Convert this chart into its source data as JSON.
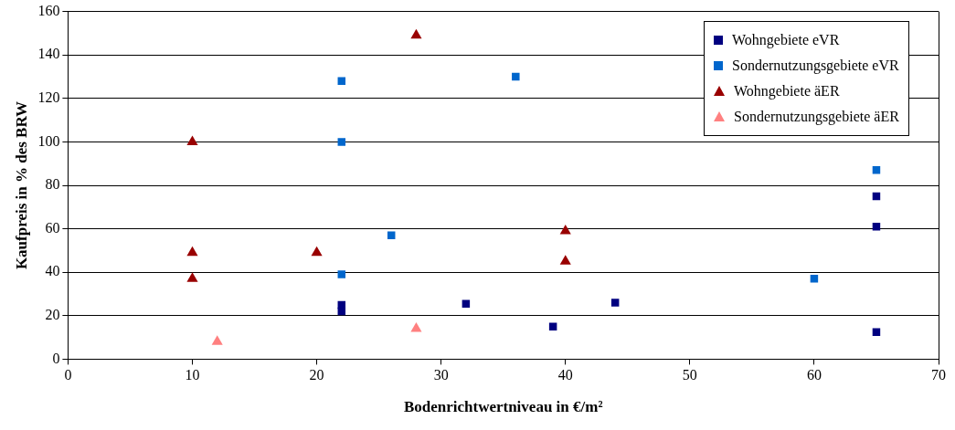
{
  "chart_data": {
    "type": "scatter",
    "xlabel": "Bodenrichtwertniveau in €/m²",
    "ylabel": "Kaufpreis in % des BRW",
    "xlim": [
      0,
      70
    ],
    "xticks": [
      0,
      10,
      20,
      30,
      40,
      50,
      60,
      70
    ],
    "ylim": [
      0,
      160
    ],
    "yticks": [
      0,
      20,
      40,
      60,
      80,
      100,
      120,
      140,
      160
    ],
    "grid": "y",
    "legend": "top right",
    "series": [
      {
        "name": "Wohngebiete eVR",
        "color": "#000080",
        "marker": "square",
        "x": [
          22,
          22,
          32,
          39,
          44,
          65,
          65,
          65
        ],
        "values": [
          25,
          22,
          25.5,
          15,
          26,
          75,
          61,
          12.5
        ]
      },
      {
        "name": "Sondernutzungsgebiete eVR",
        "color": "#0066cc",
        "marker": "square",
        "x": [
          22,
          22,
          22,
          26,
          36,
          60,
          65
        ],
        "values": [
          128,
          100,
          39,
          57,
          130,
          37,
          87
        ]
      },
      {
        "name": "Wohngebiete äER",
        "color": "#990000",
        "marker": "triangle",
        "x": [
          10,
          10,
          10,
          20,
          28,
          40,
          40
        ],
        "values": [
          100,
          49,
          37,
          49,
          149,
          59,
          45
        ]
      },
      {
        "name": "Sondernutzungsgebiete äER",
        "color": "#ff8080",
        "marker": "triangle",
        "x": [
          12,
          28
        ],
        "values": [
          8,
          14
        ]
      }
    ]
  }
}
